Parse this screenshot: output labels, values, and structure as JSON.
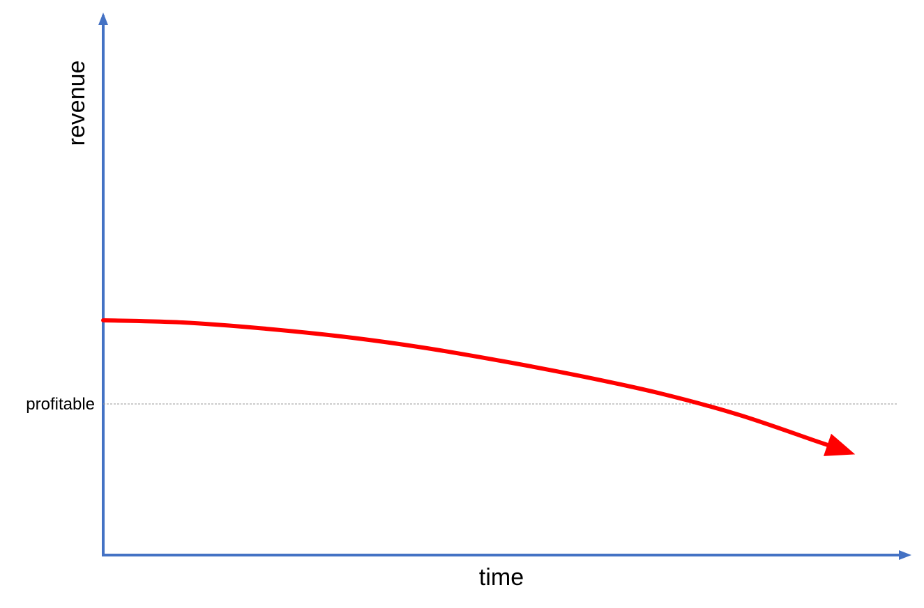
{
  "chart_data": {
    "type": "line",
    "xlabel": "time",
    "ylabel": "revenue",
    "xlim": [
      0,
      10
    ],
    "ylim": [
      0,
      10
    ],
    "reference_lines": [
      {
        "label": "profitable",
        "y": 2.8,
        "style": "dashed",
        "color": "#999999"
      }
    ],
    "series": [
      {
        "color": "#ff0000",
        "arrow_at_end": true,
        "x": [
          0,
          1,
          2,
          3,
          4,
          5,
          6,
          7,
          8,
          9,
          9.3
        ],
        "y": [
          4.35,
          4.31,
          4.2,
          4.05,
          3.85,
          3.6,
          3.32,
          3.0,
          2.6,
          2.1,
          1.95
        ]
      }
    ],
    "axis_color": "#4472c4",
    "grid": false,
    "legend": "none"
  }
}
